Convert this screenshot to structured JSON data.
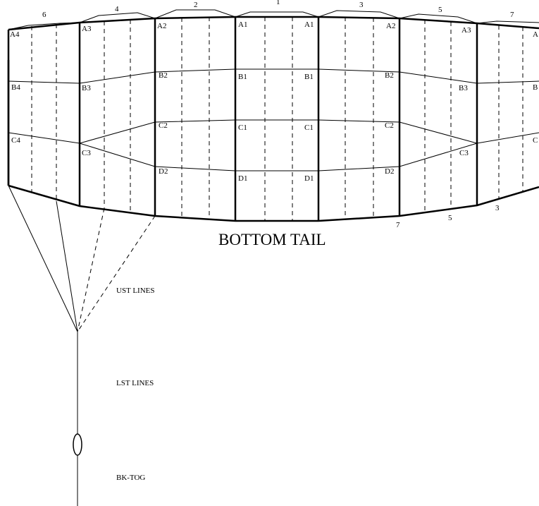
{
  "top_cell_labels": [
    "6",
    "4",
    "2",
    "1",
    "3",
    "5",
    "7"
  ],
  "rows": {
    "A": [
      "A4",
      "A3",
      "A2",
      "A1",
      "A1",
      "A2",
      "A3",
      "A"
    ],
    "B": [
      "B4",
      "B3",
      "B2",
      "B1",
      "B1",
      "B2",
      "B3",
      "B"
    ],
    "C": [
      "C4",
      "C3",
      "C2",
      "C1",
      "C1",
      "C2",
      "C3",
      "C"
    ],
    "D": [
      "D2",
      "D1",
      "D1",
      "D2"
    ]
  },
  "bottom_cell_labels": [
    "7",
    "5",
    "3"
  ],
  "bottom_label": "BOTTOM TAIL",
  "line_labels": {
    "ust": "UST LINES",
    "lst": "LST LINES",
    "toggle": "BK-TOG"
  }
}
